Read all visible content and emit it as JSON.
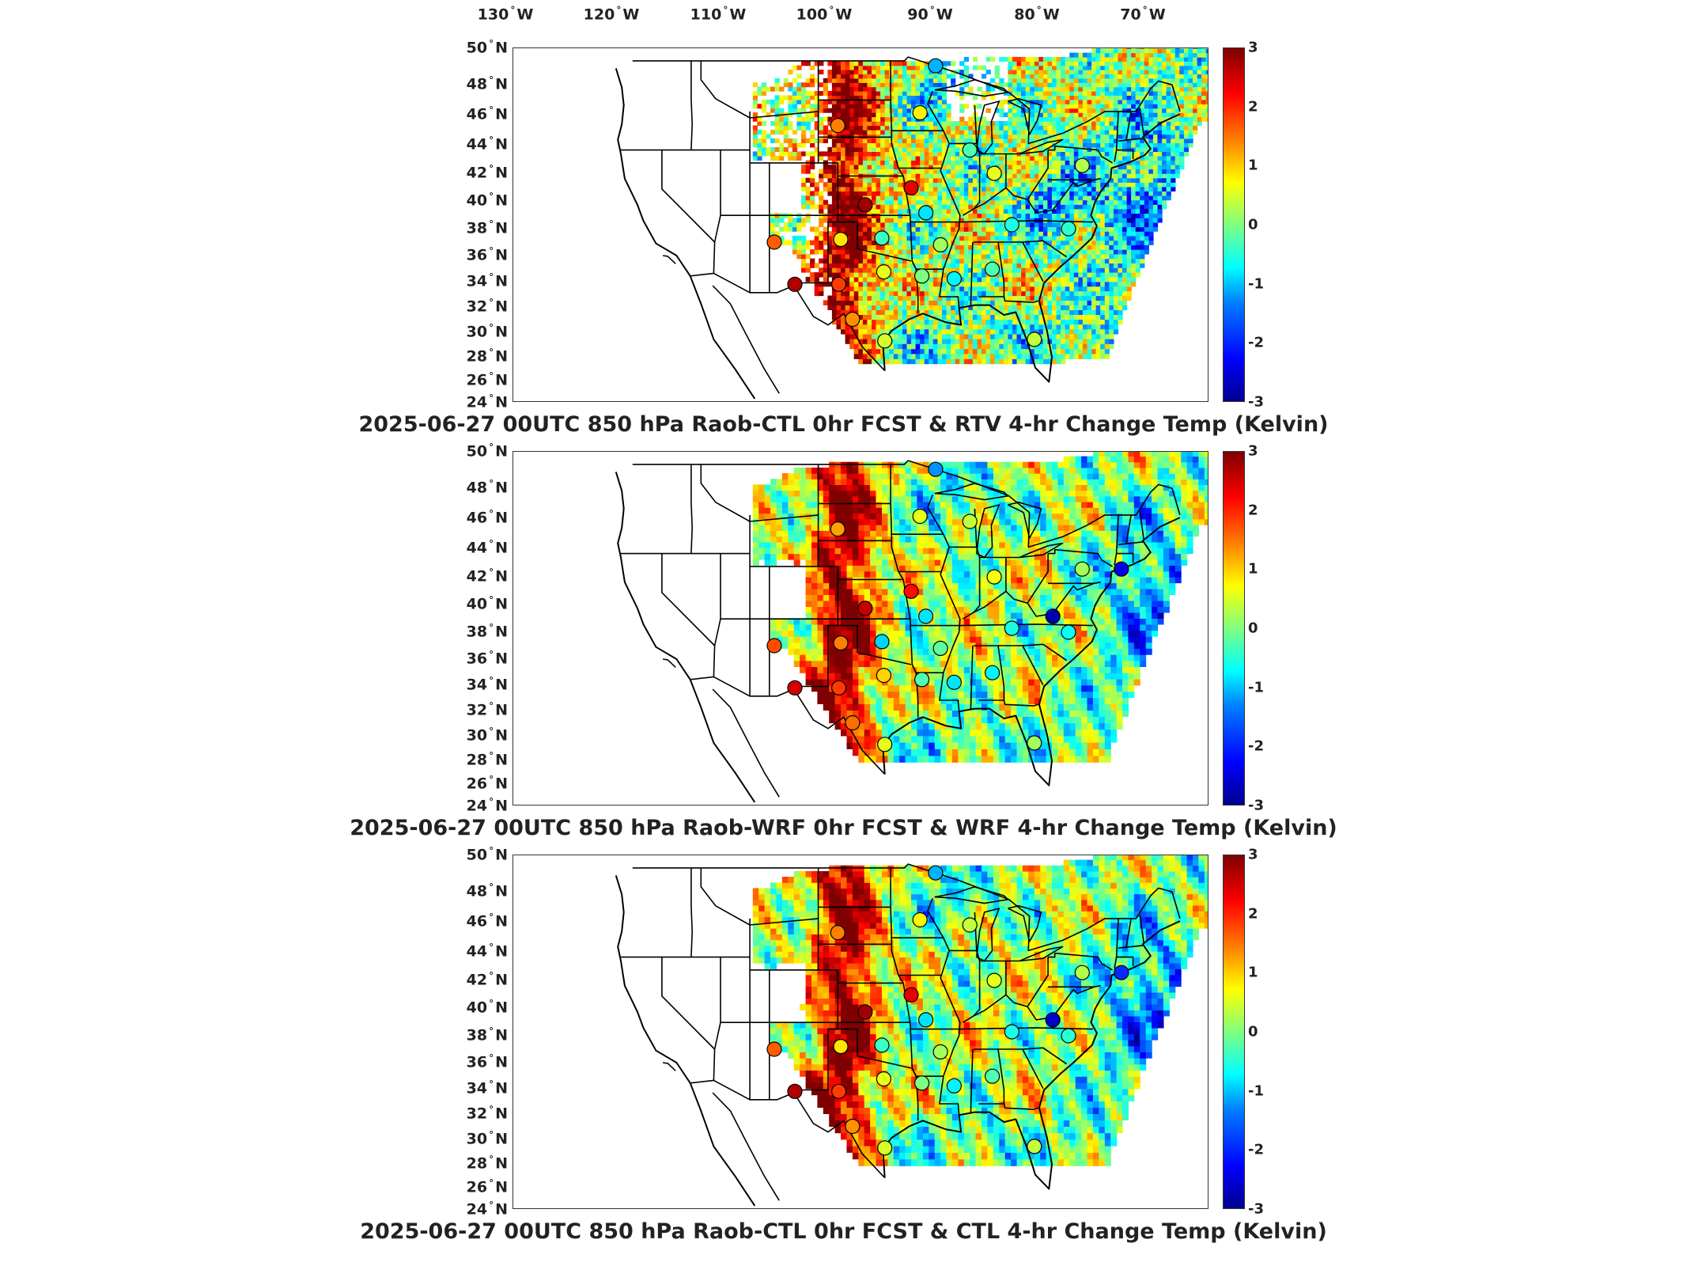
{
  "colors": {
    "scale": [
      "#00008f",
      "#0000ff",
      "#007fff",
      "#00ffff",
      "#7fff7f",
      "#ffff00",
      "#ff7f00",
      "#ff0000",
      "#7f0000"
    ],
    "border": "#000000",
    "frame": "#333333"
  },
  "lon_labels": [
    {
      "deg": "130",
      "hemi": "W"
    },
    {
      "deg": "120",
      "hemi": "W"
    },
    {
      "deg": "110",
      "hemi": "W"
    },
    {
      "deg": "100",
      "hemi": "W"
    },
    {
      "deg": "90",
      "hemi": "W"
    },
    {
      "deg": "80",
      "hemi": "W"
    },
    {
      "deg": "70",
      "hemi": "W"
    }
  ],
  "lat_labels": [
    {
      "deg": "50",
      "hemi": "N"
    },
    {
      "deg": "48",
      "hemi": "N"
    },
    {
      "deg": "46",
      "hemi": "N"
    },
    {
      "deg": "44",
      "hemi": "N"
    },
    {
      "deg": "42",
      "hemi": "N"
    },
    {
      "deg": "40",
      "hemi": "N"
    },
    {
      "deg": "38",
      "hemi": "N"
    },
    {
      "deg": "36",
      "hemi": "N"
    },
    {
      "deg": "34",
      "hemi": "N"
    },
    {
      "deg": "32",
      "hemi": "N"
    },
    {
      "deg": "30",
      "hemi": "N"
    },
    {
      "deg": "28",
      "hemi": "N"
    },
    {
      "deg": "26",
      "hemi": "N"
    },
    {
      "deg": "24",
      "hemi": "N"
    }
  ],
  "colorbar_ticks": [
    "3",
    "2",
    "1",
    "0",
    "-1",
    "-2",
    "-3"
  ],
  "colorbar_range": [
    -3,
    3
  ],
  "panels": [
    {
      "title": "2025-06-27 00UTC 850 hPa Raob-CTL 0hr FCST & RTV 4-hr Change Temp (Kelvin)",
      "field": "rtv",
      "stations": [
        {
          "lon": -92.0,
          "lat": 48.6,
          "v": -1.2
        },
        {
          "lon": -102.0,
          "lat": 43.9,
          "v": 1.5
        },
        {
          "lon": -93.6,
          "lat": 44.9,
          "v": 0.8
        },
        {
          "lon": -88.5,
          "lat": 42.0,
          "v": -0.3
        },
        {
          "lon": -86.0,
          "lat": 40.2,
          "v": 0.6
        },
        {
          "lon": -77.0,
          "lat": 40.8,
          "v": 0.3
        },
        {
          "lon": -94.5,
          "lat": 39.1,
          "v": 2.4
        },
        {
          "lon": -99.2,
          "lat": 37.8,
          "v": 2.8
        },
        {
          "lon": -93.0,
          "lat": 37.2,
          "v": -0.9
        },
        {
          "lon": -108.5,
          "lat": 35.0,
          "v": 1.7
        },
        {
          "lon": -101.7,
          "lat": 35.2,
          "v": 0.9
        },
        {
          "lon": -97.5,
          "lat": 35.3,
          "v": -0.4
        },
        {
          "lon": -91.5,
          "lat": 34.8,
          "v": 0.2
        },
        {
          "lon": -84.2,
          "lat": 36.3,
          "v": -0.6
        },
        {
          "lon": -78.4,
          "lat": 36.0,
          "v": -0.5
        },
        {
          "lon": -97.3,
          "lat": 32.8,
          "v": 0.6
        },
        {
          "lon": -93.4,
          "lat": 32.5,
          "v": 0.0
        },
        {
          "lon": -90.1,
          "lat": 32.3,
          "v": -0.8
        },
        {
          "lon": -86.2,
          "lat": 33.0,
          "v": -0.3
        },
        {
          "lon": -106.4,
          "lat": 31.9,
          "v": 2.7
        },
        {
          "lon": -101.9,
          "lat": 31.9,
          "v": 1.9
        },
        {
          "lon": -100.5,
          "lat": 29.4,
          "v": 1.4
        },
        {
          "lon": -97.2,
          "lat": 27.9,
          "v": 0.5
        },
        {
          "lon": -81.9,
          "lat": 28.0,
          "v": 0.4
        }
      ]
    },
    {
      "title": "2025-06-27 00UTC 850 hPa Raob-WRF 0hr FCST & WRF 4-hr Change Temp (Kelvin)",
      "field": "wrf",
      "stations": [
        {
          "lon": -92.0,
          "lat": 48.6,
          "v": -1.4
        },
        {
          "lon": -102.0,
          "lat": 43.9,
          "v": 1.3
        },
        {
          "lon": -93.6,
          "lat": 44.9,
          "v": 0.6
        },
        {
          "lon": -88.5,
          "lat": 44.5,
          "v": 0.4
        },
        {
          "lon": -86.0,
          "lat": 40.2,
          "v": 0.7
        },
        {
          "lon": -77.0,
          "lat": 40.8,
          "v": 0.2
        },
        {
          "lon": -73.0,
          "lat": 40.8,
          "v": -2.4
        },
        {
          "lon": -94.5,
          "lat": 39.1,
          "v": 2.2
        },
        {
          "lon": -99.2,
          "lat": 37.8,
          "v": 2.6
        },
        {
          "lon": -93.0,
          "lat": 37.2,
          "v": -0.9
        },
        {
          "lon": -80.0,
          "lat": 37.2,
          "v": -2.8
        },
        {
          "lon": -108.5,
          "lat": 35.0,
          "v": 1.8
        },
        {
          "lon": -101.7,
          "lat": 35.2,
          "v": 1.5
        },
        {
          "lon": -97.5,
          "lat": 35.3,
          "v": -1.0
        },
        {
          "lon": -91.5,
          "lat": 34.8,
          "v": -0.2
        },
        {
          "lon": -84.2,
          "lat": 36.3,
          "v": -0.6
        },
        {
          "lon": -78.4,
          "lat": 36.0,
          "v": -0.7
        },
        {
          "lon": -97.3,
          "lat": 32.8,
          "v": 1.0
        },
        {
          "lon": -93.4,
          "lat": 32.5,
          "v": -0.3
        },
        {
          "lon": -90.1,
          "lat": 32.3,
          "v": -0.9
        },
        {
          "lon": -86.2,
          "lat": 33.0,
          "v": -0.8
        },
        {
          "lon": -106.4,
          "lat": 31.9,
          "v": 2.5
        },
        {
          "lon": -101.9,
          "lat": 31.9,
          "v": 1.9
        },
        {
          "lon": -100.5,
          "lat": 29.4,
          "v": 1.6
        },
        {
          "lon": -97.2,
          "lat": 27.9,
          "v": 0.6
        },
        {
          "lon": -81.9,
          "lat": 28.0,
          "v": 0.2
        }
      ]
    },
    {
      "title": "2025-06-27 00UTC 850 hPa Raob-CTL 0hr FCST & CTL 4-hr Change Temp (Kelvin)",
      "field": "ctl",
      "stations": [
        {
          "lon": -92.0,
          "lat": 48.6,
          "v": -1.2
        },
        {
          "lon": -102.0,
          "lat": 43.9,
          "v": 1.5
        },
        {
          "lon": -93.6,
          "lat": 44.9,
          "v": 0.8
        },
        {
          "lon": -88.5,
          "lat": 44.5,
          "v": 0.4
        },
        {
          "lon": -86.0,
          "lat": 40.2,
          "v": 0.6
        },
        {
          "lon": -77.0,
          "lat": 40.8,
          "v": 0.3
        },
        {
          "lon": -73.0,
          "lat": 40.8,
          "v": -2.0
        },
        {
          "lon": -94.5,
          "lat": 39.1,
          "v": 2.4
        },
        {
          "lon": -99.2,
          "lat": 37.8,
          "v": 2.8
        },
        {
          "lon": -93.0,
          "lat": 37.2,
          "v": -0.9
        },
        {
          "lon": -80.0,
          "lat": 37.2,
          "v": -2.6
        },
        {
          "lon": -108.5,
          "lat": 35.0,
          "v": 1.7
        },
        {
          "lon": -101.7,
          "lat": 35.2,
          "v": 0.9
        },
        {
          "lon": -97.5,
          "lat": 35.3,
          "v": -0.4
        },
        {
          "lon": -91.5,
          "lat": 34.8,
          "v": 0.2
        },
        {
          "lon": -84.2,
          "lat": 36.3,
          "v": -0.6
        },
        {
          "lon": -78.4,
          "lat": 36.0,
          "v": -0.5
        },
        {
          "lon": -97.3,
          "lat": 32.8,
          "v": 0.6
        },
        {
          "lon": -93.4,
          "lat": 32.5,
          "v": 0.0
        },
        {
          "lon": -90.1,
          "lat": 32.3,
          "v": -0.8
        },
        {
          "lon": -86.2,
          "lat": 33.0,
          "v": -0.3
        },
        {
          "lon": -106.4,
          "lat": 31.9,
          "v": 2.7
        },
        {
          "lon": -101.9,
          "lat": 31.9,
          "v": 1.9
        },
        {
          "lon": -100.5,
          "lat": 29.4,
          "v": 1.4
        },
        {
          "lon": -97.2,
          "lat": 27.9,
          "v": 0.5
        },
        {
          "lon": -81.9,
          "lat": 28.0,
          "v": 0.4
        }
      ]
    }
  ]
}
